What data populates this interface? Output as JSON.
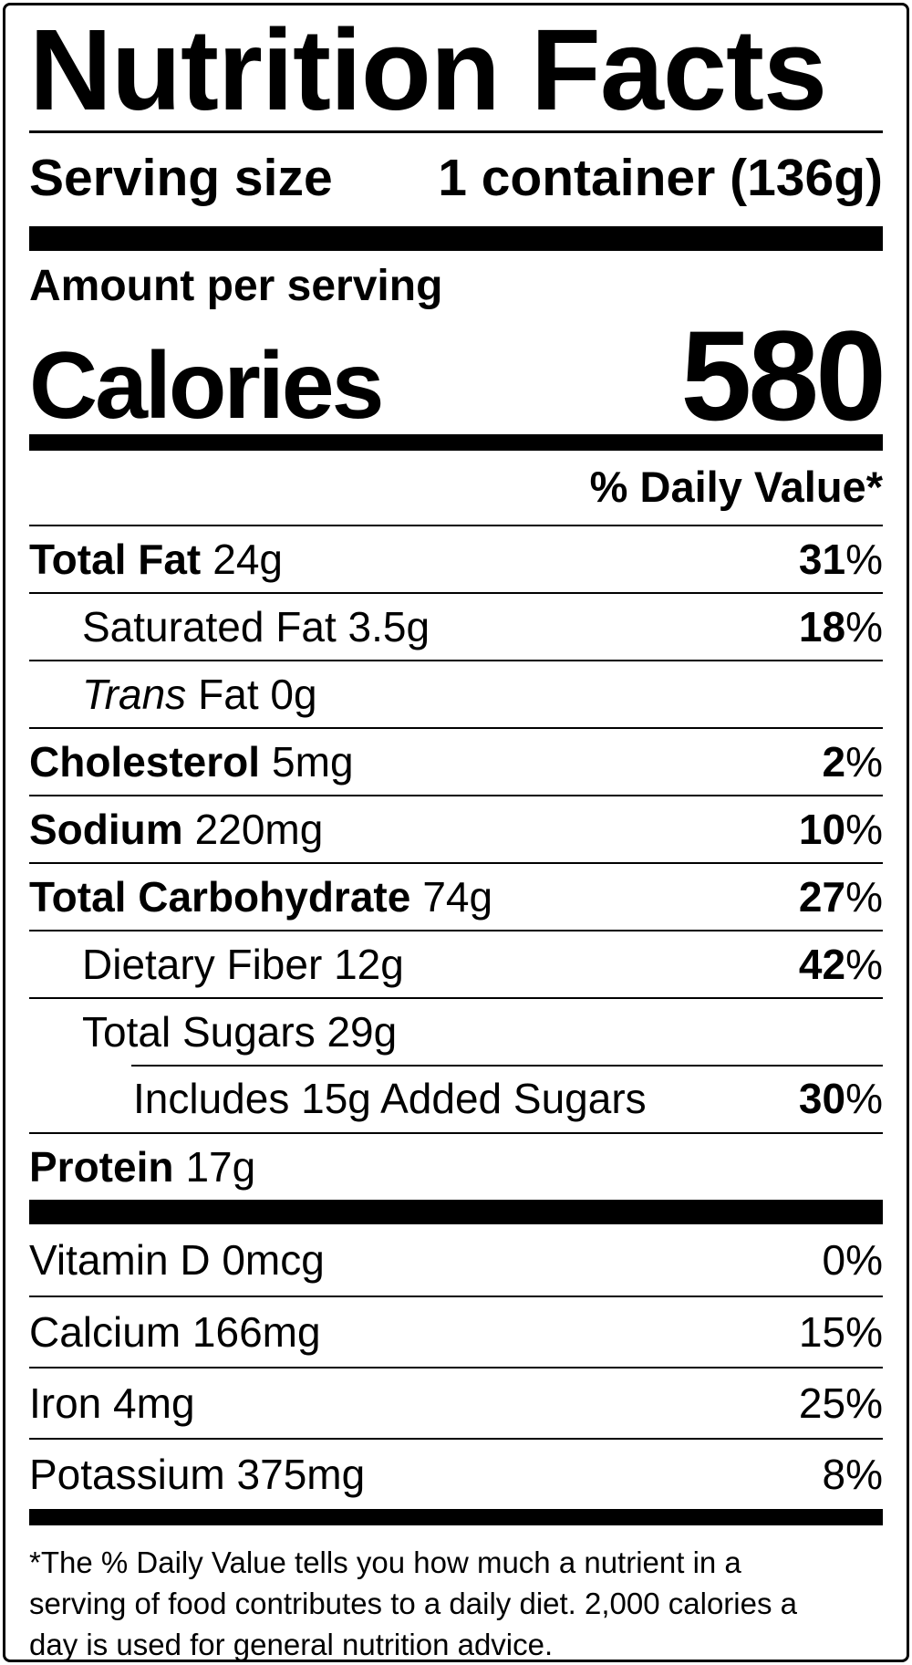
{
  "label": {
    "title": "Nutrition Facts",
    "serving": {
      "label": "Serving size",
      "value": "1 container (136g)"
    },
    "amount_per_serving": "Amount per serving",
    "calories": {
      "label": "Calories",
      "value": "580"
    },
    "daily_value_header": "% Daily Value*",
    "percent_sign": "%",
    "nutrients": [
      {
        "bold": "Total Fat",
        "rest": "24g",
        "dv": "31"
      },
      {
        "rest": "Saturated Fat 3.5g",
        "dv": "18"
      },
      {
        "italic": "Trans",
        "rest": "Fat 0g",
        "dv": ""
      },
      {
        "bold": "Cholesterol",
        "rest": "5mg",
        "dv": "2"
      },
      {
        "bold": "Sodium",
        "rest": "220mg",
        "dv": "10"
      },
      {
        "bold": "Total Carbohydrate",
        "rest": "74g",
        "dv": "27"
      },
      {
        "rest": "Dietary Fiber 12g",
        "dv": "42"
      },
      {
        "rest": "Total Sugars 29g",
        "dv": ""
      },
      {
        "rest": "Includes 15g Added Sugars",
        "dv": "30"
      },
      {
        "bold": "Protein",
        "rest": "17g",
        "dv": ""
      }
    ],
    "vitamins": [
      {
        "name": "Vitamin D 0mcg",
        "dv": "0"
      },
      {
        "name": "Calcium 166mg",
        "dv": "15"
      },
      {
        "name": "Iron 4mg",
        "dv": "25"
      },
      {
        "name": "Potassium 375mg",
        "dv": "8"
      }
    ],
    "footnote_lines": [
      "*The % Daily Value tells you how much a nutrient in a",
      "serving of food contributes to a daily diet. 2,000 calories a",
      "day is used for general nutrition advice."
    ]
  }
}
